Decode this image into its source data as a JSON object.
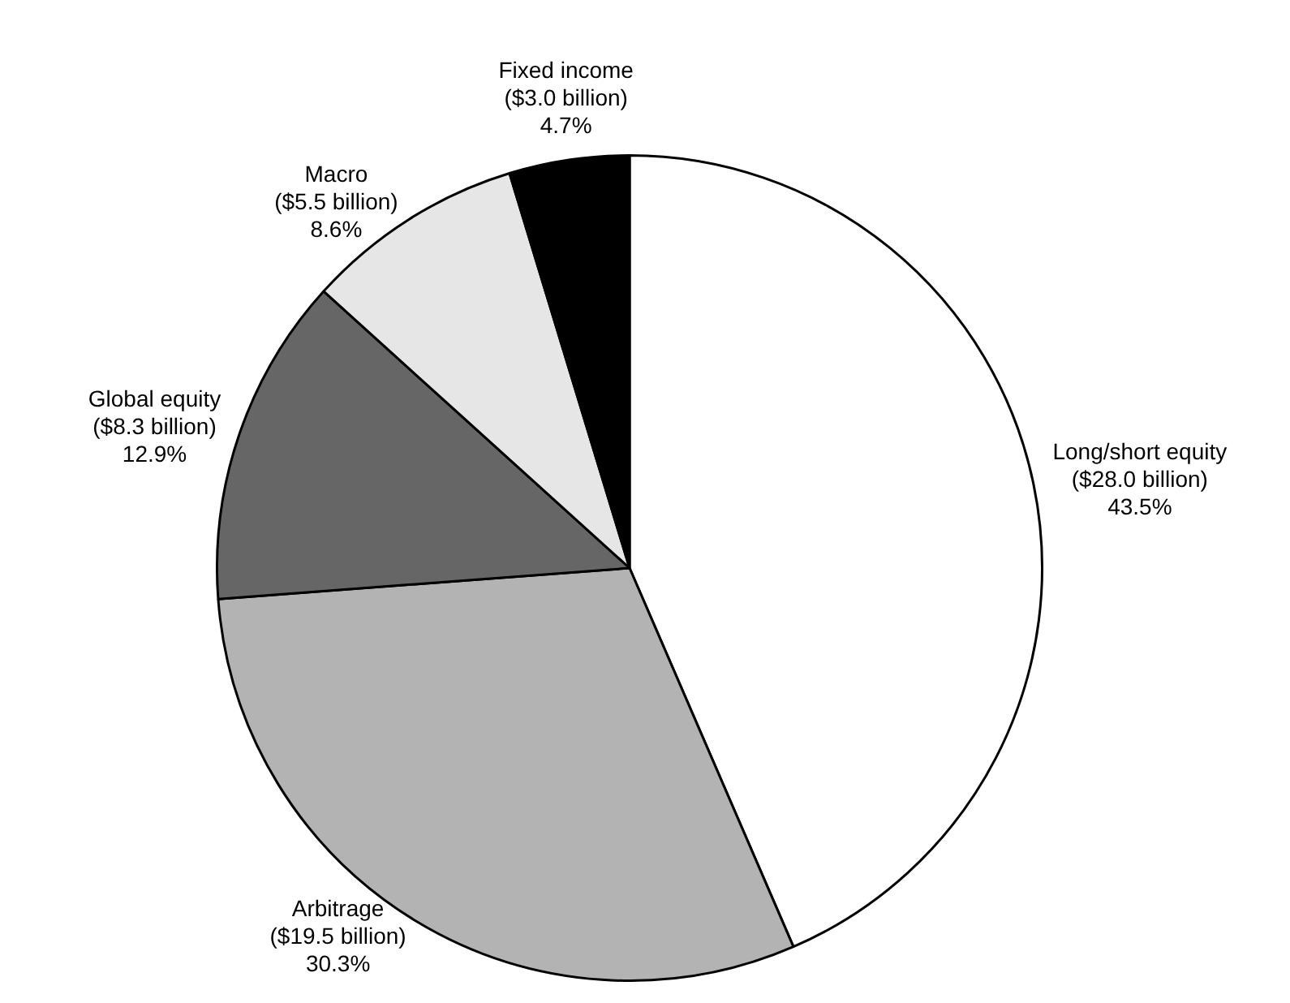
{
  "chart_data": {
    "type": "pie",
    "categories": [
      "Long/short equity",
      "Arbitrage",
      "Global equity",
      "Macro",
      "Fixed income"
    ],
    "values": [
      43.5,
      30.3,
      12.9,
      8.6,
      4.7
    ],
    "colors": [
      "#ffffff",
      "#b3b3b3",
      "#666666",
      "#e6e6e6",
      "#000000"
    ],
    "value_labels": [
      "($28.0 billion)\n43.5%",
      "($19.5 billion)\n30.3%",
      "($8.3 billion)\n12.9%",
      "($5.5 billion)\n8.6%",
      "($3.0 billion)\n4.7%"
    ],
    "legend": false
  }
}
